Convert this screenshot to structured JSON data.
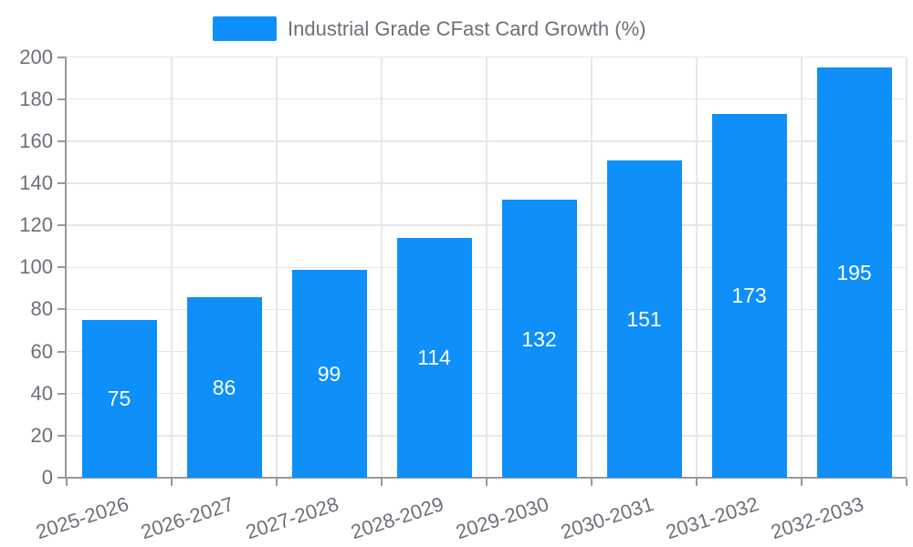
{
  "legend": {
    "label": "Industrial Grade CFast Card Growth (%)"
  },
  "colors": {
    "bar": "#0E8FF9",
    "bar_label": "#FFFFFF",
    "grid_line": "#E7E7E7",
    "axis_line": "#999999",
    "text": "#6E7079",
    "background": "#FFFFFF"
  },
  "chart_data": {
    "type": "bar",
    "title": "Industrial Grade CFast Card Growth (%)",
    "series_name": "Industrial Grade CFast Card Growth (%)",
    "categories": [
      "2025-2026",
      "2026-2027",
      "2027-2028",
      "2028-2029",
      "2029-2030",
      "2030-2031",
      "2031-2032",
      "2032-2033"
    ],
    "values": [
      75,
      86,
      99,
      114,
      132,
      151,
      173,
      195
    ],
    "xlabel": "",
    "ylabel": "",
    "ylim": [
      0,
      200
    ],
    "ytick_step": 20,
    "ytick_labels": [
      "0",
      "20",
      "40",
      "60",
      "80",
      "100",
      "120",
      "140",
      "160",
      "180",
      "200"
    ],
    "grid": true,
    "legend_position": "top",
    "bar_label_position": "inside-center",
    "x_tick_rotation_deg": -18
  }
}
